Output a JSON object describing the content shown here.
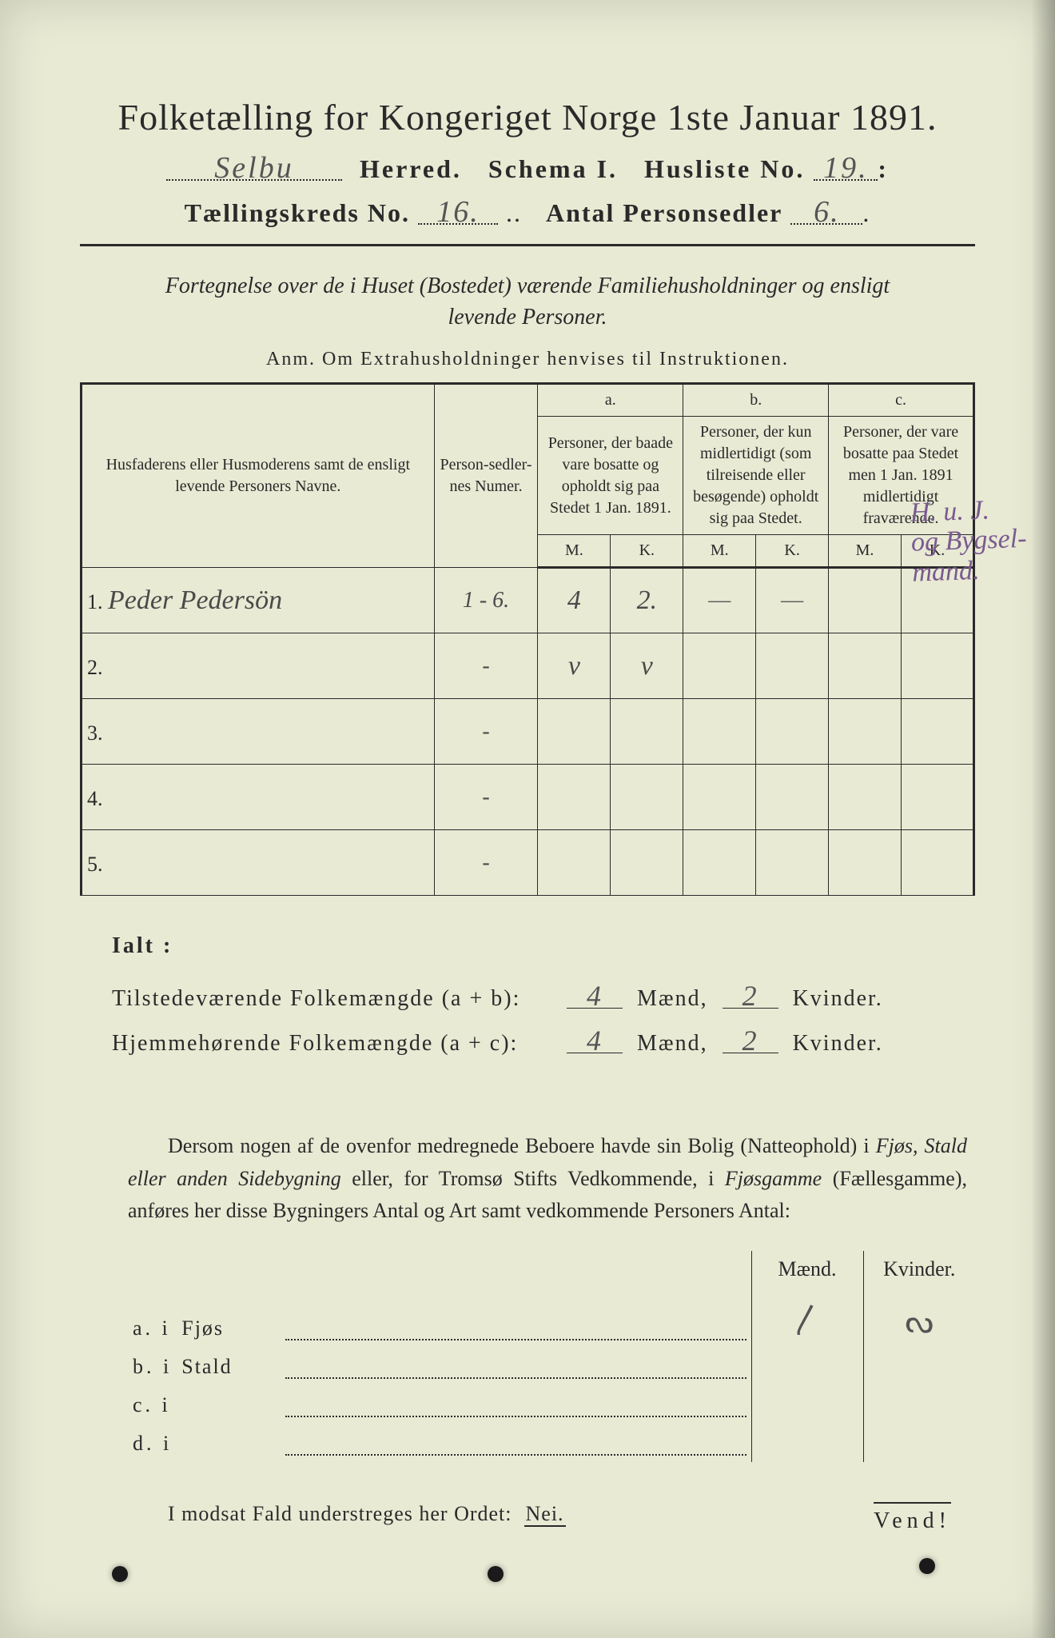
{
  "colors": {
    "paper": "#e8ead4",
    "ink": "#2a2a2a",
    "handwriting": "#555555",
    "purple_ink": "#7b5a8f"
  },
  "header": {
    "title": "Folketælling for Kongeriget Norge 1ste Januar 1891.",
    "herred_value": "Selbu",
    "herred_label": "Herred.",
    "schema_label": "Schema I.",
    "husliste_label": "Husliste No.",
    "husliste_value": "19.",
    "kreds_label": "Tællingskreds No.",
    "kreds_value": "16.",
    "antal_label": "Antal Personsedler",
    "antal_value": "6."
  },
  "subhead": {
    "line1": "Fortegnelse over de i Huset (Bostedet) værende Familiehusholdninger og ensligt",
    "line2": "levende Personer.",
    "anm": "Anm.   Om Extrahusholdninger henvises til Instruktionen."
  },
  "table": {
    "head_name": "Husfaderens eller Husmoderens samt de ensligt levende Personers Navne.",
    "head_num": "Person-sedler-nes Numer.",
    "group_a_letter": "a.",
    "group_a": "Personer, der baade vare bosatte og opholdt sig paa Stedet 1 Jan. 1891.",
    "group_b_letter": "b.",
    "group_b": "Personer, der kun midlertidigt (som tilreisende eller besøgende) opholdt sig paa Stedet.",
    "group_c_letter": "c.",
    "group_c": "Personer, der vare bosatte paa Stedet men 1 Jan. 1891 midlertidigt fraværende.",
    "mk_m": "M.",
    "mk_k": "K.",
    "rows": [
      {
        "num": "1.",
        "name": "Peder Pedersön",
        "sedler": "1 - 6.",
        "a_m": "4",
        "a_k": "2.",
        "b_m": "—",
        "b_k": "—",
        "c_m": "",
        "c_k": ""
      },
      {
        "num": "2.",
        "name": "",
        "sedler": "-",
        "a_m": "v",
        "a_k": "v",
        "b_m": "",
        "b_k": "",
        "c_m": "",
        "c_k": ""
      },
      {
        "num": "3.",
        "name": "",
        "sedler": "-",
        "a_m": "",
        "a_k": "",
        "b_m": "",
        "b_k": "",
        "c_m": "",
        "c_k": ""
      },
      {
        "num": "4.",
        "name": "",
        "sedler": "-",
        "a_m": "",
        "a_k": "",
        "b_m": "",
        "b_k": "",
        "c_m": "",
        "c_k": ""
      },
      {
        "num": "5.",
        "name": "",
        "sedler": "-",
        "a_m": "",
        "a_k": "",
        "b_m": "",
        "b_k": "",
        "c_m": "",
        "c_k": ""
      }
    ]
  },
  "margin_note": {
    "line1": "H. u. J.",
    "line2": "og Bygsel-",
    "line3": "mand."
  },
  "ialt": {
    "heading": "Ialt :",
    "line1_label": "Tilstedeværende  Folkemængde (a + b):",
    "line1_m": "4",
    "line1_k": "2",
    "line2_label": "Hjemmehørende  Folkemængde (a + c):",
    "line2_m": "4",
    "line2_k": "2",
    "maend": "Mænd,",
    "kvinder": "Kvinder."
  },
  "para": "Dersom nogen af de ovenfor medregnede Beboere havde sin Bolig (Natteophold) i Fjøs, Stald eller anden Sidebygning eller, for Tromsø Stifts Vedkommende, i Fjøsgamme (Fællesgamme), anføres her disse Bygningers Antal og Art samt vedkommende Personers Antal:",
  "lower": {
    "maend": "Mænd.",
    "kvinder": "Kvinder.",
    "rows": [
      {
        "pre": "a.  i",
        "word": "Fjøs"
      },
      {
        "pre": "b.  i",
        "word": "Stald"
      },
      {
        "pre": "c.  i",
        "word": ""
      },
      {
        "pre": "d.  i",
        "word": ""
      }
    ],
    "scribble_m": "〳",
    "scribble_k": "ᔓ"
  },
  "nei": {
    "text": "I modsat Fald understreges her Ordet:",
    "word": "Nei."
  },
  "vend": "Vend!"
}
